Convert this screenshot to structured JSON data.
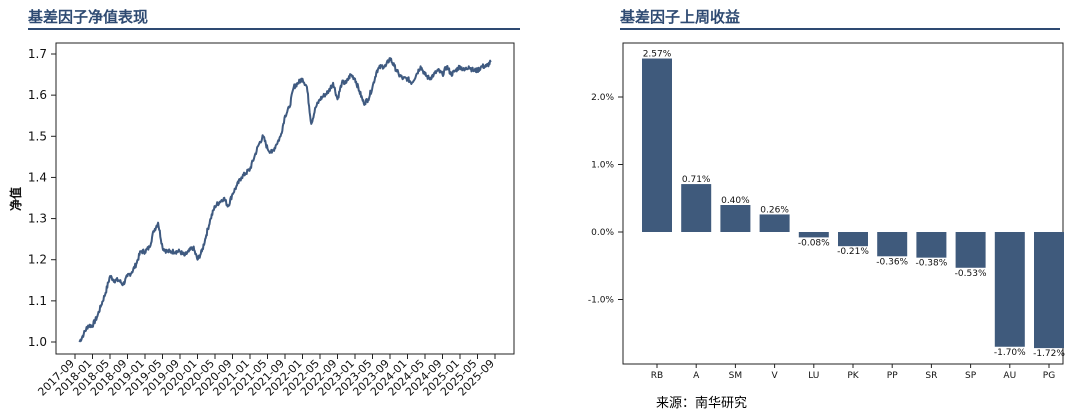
{
  "left_title": "基差因子净值表现",
  "right_title": "基差因子上周收益",
  "source": "来源：南华研究",
  "colors": {
    "accent": "#2e4a72",
    "series": "#3f5a80",
    "bar": "#3f5a7c"
  },
  "chart_data": [
    {
      "type": "line",
      "title": "基差因子净值表现",
      "xlabel": "",
      "ylabel": "净值",
      "xlim": [
        "2017-09",
        "2025-09"
      ],
      "ylim": [
        0.98,
        1.72
      ],
      "y_ticks": [
        1.0,
        1.1,
        1.2,
        1.3,
        1.4,
        1.5,
        1.6,
        1.7
      ],
      "x_ticks": [
        "2017-09",
        "2018-01",
        "2018-05",
        "2018-09",
        "2019-01",
        "2019-05",
        "2019-09",
        "2020-01",
        "2020-05",
        "2020-09",
        "2021-01",
        "2021-05",
        "2021-09",
        "2022-01",
        "2022-05",
        "2022-09",
        "2023-01",
        "2023-05",
        "2023-09",
        "2024-01",
        "2024-05",
        "2024-09",
        "2025-01",
        "2025-05",
        "2025-09"
      ],
      "grid": false,
      "series": [
        {
          "x": [
            "2017-10",
            "2017-11",
            "2017-12",
            "2018-01",
            "2018-02",
            "2018-03",
            "2018-04",
            "2018-05",
            "2018-06",
            "2018-07",
            "2018-08",
            "2018-09",
            "2018-10",
            "2018-11",
            "2018-12",
            "2019-01",
            "2019-02",
            "2019-03",
            "2019-04",
            "2019-05",
            "2019-06",
            "2019-07",
            "2019-08",
            "2019-09",
            "2019-10",
            "2019-11",
            "2019-12",
            "2020-01",
            "2020-02",
            "2020-03",
            "2020-04",
            "2020-05",
            "2020-06",
            "2020-07",
            "2020-08",
            "2020-09",
            "2020-10",
            "2020-11",
            "2020-12",
            "2021-01",
            "2021-02",
            "2021-03",
            "2021-04",
            "2021-05",
            "2021-06",
            "2021-07",
            "2021-08",
            "2021-09",
            "2021-10",
            "2021-11",
            "2021-12",
            "2022-01",
            "2022-02",
            "2022-03",
            "2022-04",
            "2022-05",
            "2022-06",
            "2022-07",
            "2022-08",
            "2022-09",
            "2022-10",
            "2022-11",
            "2022-12",
            "2023-01",
            "2023-02",
            "2023-03",
            "2023-04",
            "2023-05",
            "2023-06",
            "2023-07",
            "2023-08",
            "2023-09",
            "2023-10",
            "2023-11",
            "2023-12",
            "2024-01",
            "2024-02",
            "2024-03",
            "2024-04",
            "2024-05",
            "2024-06",
            "2024-07",
            "2024-08",
            "2024-09",
            "2024-10",
            "2024-11",
            "2024-12",
            "2025-01",
            "2025-02",
            "2025-03",
            "2025-04",
            "2025-05",
            "2025-06",
            "2025-07",
            "2025-08"
          ],
          "y": [
            1.0,
            1.02,
            1.04,
            1.04,
            1.06,
            1.09,
            1.12,
            1.16,
            1.15,
            1.15,
            1.14,
            1.16,
            1.17,
            1.19,
            1.22,
            1.22,
            1.23,
            1.27,
            1.29,
            1.23,
            1.22,
            1.22,
            1.22,
            1.22,
            1.21,
            1.22,
            1.23,
            1.2,
            1.22,
            1.26,
            1.3,
            1.33,
            1.34,
            1.35,
            1.33,
            1.36,
            1.38,
            1.4,
            1.41,
            1.42,
            1.45,
            1.48,
            1.5,
            1.47,
            1.46,
            1.48,
            1.5,
            1.55,
            1.57,
            1.62,
            1.63,
            1.64,
            1.62,
            1.53,
            1.57,
            1.59,
            1.6,
            1.61,
            1.63,
            1.59,
            1.63,
            1.63,
            1.65,
            1.64,
            1.61,
            1.58,
            1.59,
            1.62,
            1.66,
            1.67,
            1.67,
            1.69,
            1.67,
            1.65,
            1.64,
            1.64,
            1.63,
            1.65,
            1.67,
            1.65,
            1.64,
            1.65,
            1.66,
            1.65,
            1.67,
            1.65,
            1.66,
            1.67,
            1.66,
            1.67,
            1.66,
            1.66,
            1.67,
            1.67,
            1.68
          ]
        }
      ]
    },
    {
      "type": "bar",
      "title": "基差因子上周收益",
      "xlabel": "",
      "ylabel": "",
      "categories": [
        "RB",
        "A",
        "SM",
        "V",
        "LU",
        "PK",
        "PP",
        "SR",
        "SP",
        "AU",
        "PG"
      ],
      "values": [
        2.57,
        0.71,
        0.4,
        0.26,
        -0.08,
        -0.21,
        -0.36,
        -0.38,
        -0.53,
        -1.7,
        -1.72
      ],
      "data_labels": [
        "2.57%",
        "0.71%",
        "0.40%",
        "0.26%",
        "-0.08%",
        "-0.21%",
        "-0.36%",
        "-0.38%",
        "-0.53%",
        "-1.70%",
        "-1.72%"
      ],
      "ylim": [
        -1.93,
        2.72
      ],
      "y_ticks": [
        2.0,
        1.0,
        0.0,
        -1.0
      ],
      "y_tick_labels": [
        "2.0%",
        "1.0%",
        "0.0%",
        "-1.0%"
      ],
      "grid": false
    }
  ]
}
